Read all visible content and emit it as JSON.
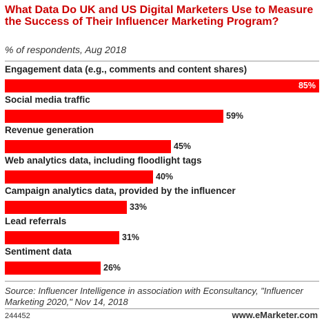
{
  "header": {
    "title": "What Data Do UK and US Digital Marketers Use to Measure the Success of Their Influencer Marketing Program?",
    "subtitle": "% of respondents, Aug 2018"
  },
  "chart_data": {
    "type": "bar",
    "orientation": "horizontal",
    "categories": [
      "Engagement data (e.g., comments and content shares)",
      "Social media traffic",
      "Revenue generation",
      "Web analytics data, including floodlight tags",
      "Campaign analytics data, provided by the influencer",
      "Lead referrals",
      "Sentiment data"
    ],
    "values": [
      85,
      59,
      45,
      40,
      33,
      31,
      26
    ],
    "value_labels": [
      "85%",
      "59%",
      "45%",
      "40%",
      "33%",
      "31%",
      "26%"
    ],
    "bar_color": "#ff0000",
    "xlim": [
      0,
      85
    ],
    "grid": false
  },
  "footer": {
    "source": "Source: Influencer Intelligence in association with Econsultancy, \"Influencer Marketing 2020,\" Nov 14, 2018",
    "chart_id": "244452",
    "brand": "www.eMarketer.com"
  }
}
